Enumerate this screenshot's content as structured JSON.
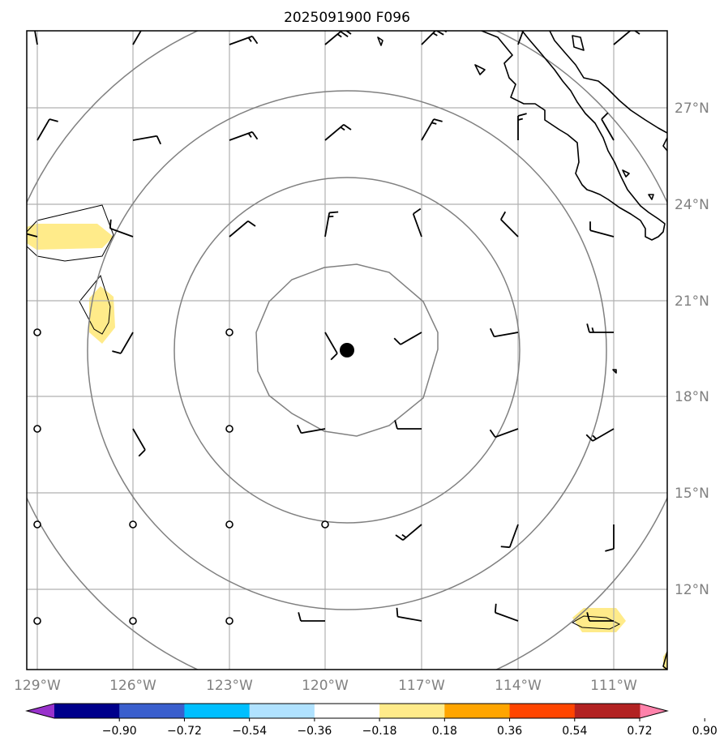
{
  "title": "2025091900 F096",
  "map": {
    "lon_labels": [
      "129°W",
      "126°W",
      "123°W",
      "120°W",
      "117°W",
      "114°W",
      "111°W"
    ],
    "lat_labels": [
      "27°N",
      "24°N",
      "21°N",
      "18°N",
      "15°N",
      "12°N"
    ],
    "center_marker": "storm-center",
    "fill_color": "#ffeb8a",
    "ring_color": "#808080"
  },
  "colorbar": {
    "tick_labels": [
      "−0.90",
      "−0.72",
      "−0.54",
      "−0.36",
      "−0.18",
      "0.18",
      "0.36",
      "0.54",
      "0.72",
      "0.90"
    ],
    "colors": [
      "#9932cc",
      "#00008b",
      "#3a5fcd",
      "#00bfff",
      "#b0e2ff",
      "#ffffff",
      "#ffeb8a",
      "#ffa500",
      "#ff4500",
      "#b22222",
      "#ff82ab"
    ]
  }
}
